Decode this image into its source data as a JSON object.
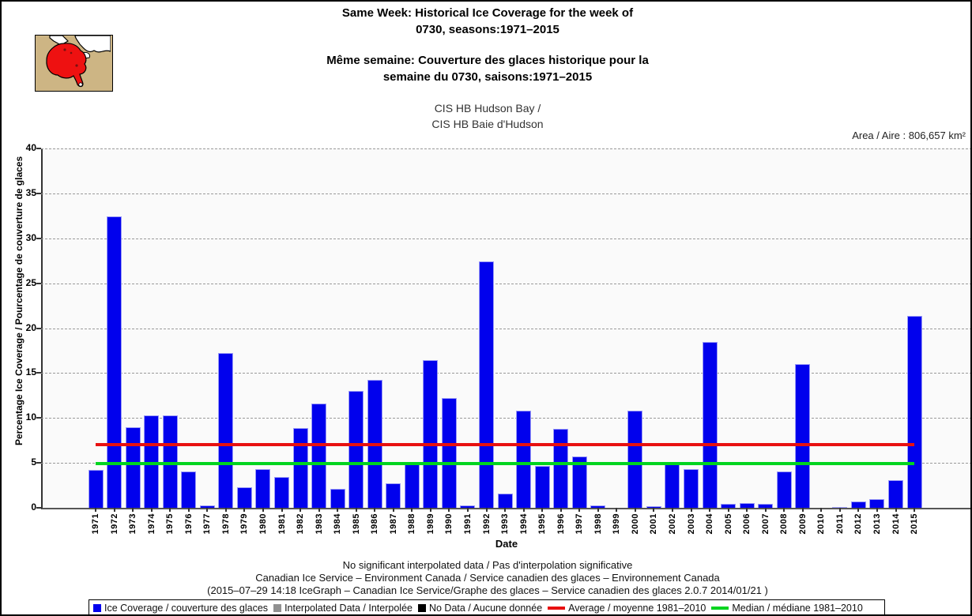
{
  "header": {
    "title_en_line1": "Same Week: Historical Ice Coverage for the week of",
    "title_en_line2": "0730, seasons:1971–2015",
    "title_fr_line1": "Même semaine: Couverture des glaces historique pour la",
    "title_fr_line2": "semaine du 0730, saisons:1971–2015",
    "region_line1": "CIS HB Hudson Bay /",
    "region_line2": "CIS HB Baie d'Hudson",
    "area_label": "Area / Aire : 806,657 km²"
  },
  "map": {
    "name": "hudson-bay-region-map",
    "land_color": "#CDB584",
    "water_color": "#FFFFFF",
    "highlight_color": "#EE1111"
  },
  "chart_data": {
    "type": "bar",
    "title": "Same Week: Historical Ice Coverage for the week of 0730, seasons:1971–2015",
    "xlabel": "Date",
    "ylabel": "Percentage Ice Coverage / Pourcentage de couverture de glaces",
    "ylim": [
      0,
      40
    ],
    "yticks": [
      0,
      5,
      10,
      15,
      20,
      25,
      30,
      35,
      40
    ],
    "grid": "horizontal-dashed",
    "legend_position": "bottom",
    "bar_color": "#0101ED",
    "categories": [
      "1971",
      "1972",
      "1973",
      "1974",
      "1975",
      "1976",
      "1977",
      "1978",
      "1979",
      "1980",
      "1981",
      "1982",
      "1983",
      "1984",
      "1985",
      "1986",
      "1987",
      "1988",
      "1989",
      "1990",
      "1991",
      "1992",
      "1993",
      "1994",
      "1995",
      "1996",
      "1997",
      "1998",
      "1999",
      "2000",
      "2001",
      "2002",
      "2003",
      "2004",
      "2005",
      "2006",
      "2007",
      "2008",
      "2009",
      "2010",
      "2011",
      "2012",
      "2013",
      "2014",
      "2015"
    ],
    "values": [
      4.2,
      32.4,
      9.0,
      10.3,
      10.3,
      4.0,
      0.3,
      17.2,
      2.3,
      4.3,
      3.4,
      8.9,
      11.6,
      2.1,
      13.0,
      14.2,
      2.7,
      4.8,
      16.4,
      12.2,
      0.3,
      27.4,
      1.6,
      10.8,
      4.7,
      8.8,
      5.7,
      0.3,
      0.0,
      10.8,
      0.2,
      4.8,
      4.3,
      18.5,
      0.4,
      0.5,
      0.4,
      4.0,
      16.0,
      0.0,
      0.1,
      0.7,
      1.0,
      3.1,
      21.4
    ],
    "reference_lines": [
      {
        "name": "Average / moyenne 1981–2010",
        "value": 7.0,
        "color": "#E81010"
      },
      {
        "name": "Median / médiane 1981–2010",
        "value": 4.9,
        "color": "#00D41F"
      }
    ]
  },
  "legend": {
    "items": [
      {
        "label": "Ice Coverage / couverture des glaces",
        "swatch": "square",
        "color": "#0101ED"
      },
      {
        "label": "Interpolated Data / Interpolée",
        "swatch": "square",
        "color": "#909090"
      },
      {
        "label": "No Data / Aucune donnée",
        "swatch": "square",
        "color": "#000000"
      },
      {
        "label": "Average / moyenne 1981–2010",
        "swatch": "line",
        "color": "#E81010"
      },
      {
        "label": "Median / médiane 1981–2010",
        "swatch": "line",
        "color": "#00D41F"
      }
    ]
  },
  "footer": {
    "line1": "No significant interpolated data / Pas d'interpolation significative",
    "line2": "Canadian Ice Service – Environment Canada / Service canadien des glaces – Environnement Canada",
    "line3": "(2015–07–29 14:18 IceGraph – Canadian Ice Service/Graphe des glaces – Service canadien des glaces 2.0.7 2014/01/21 )"
  }
}
